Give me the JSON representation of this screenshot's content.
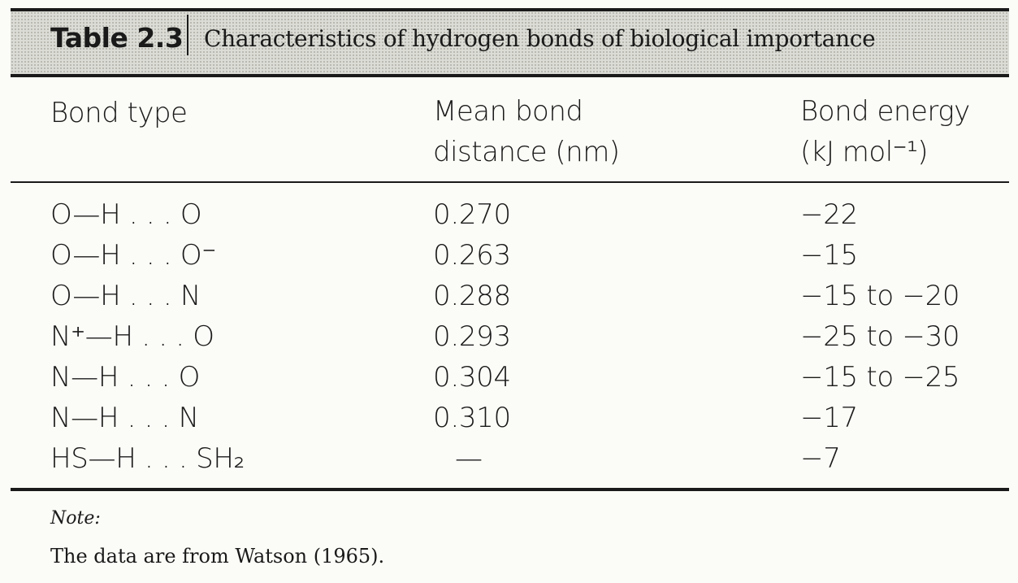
{
  "table": {
    "number": "Table 2.3",
    "title": "Characteristics of hydrogen bonds of biological importance",
    "columns": {
      "bond_type": [
        "Bond type"
      ],
      "distance": [
        "Mean bond",
        "distance (nm)"
      ],
      "energy": [
        "Bond energy",
        "(kJ mol⁻¹)"
      ]
    },
    "rows": [
      {
        "bond": "O—H . . . O",
        "distance": "0.270",
        "energy": "−22"
      },
      {
        "bond": "O—H . . . O⁻",
        "distance": "0.263",
        "energy": "−15"
      },
      {
        "bond": "O—H . . . N",
        "distance": "0.288",
        "energy": "−15 to −20"
      },
      {
        "bond": "N⁺—H . . . O",
        "distance": "0.293",
        "energy": "−25 to −30"
      },
      {
        "bond": "N—H . . . O",
        "distance": "0.304",
        "energy": "−15 to −25"
      },
      {
        "bond": "N—H . . . N",
        "distance": "0.310",
        "energy": "−17"
      },
      {
        "bond": "HS—H . . . SH₂",
        "distance": "—",
        "energy": "−7"
      }
    ]
  },
  "note": {
    "label": "Note:",
    "text": "The data are from Watson (1965)."
  }
}
